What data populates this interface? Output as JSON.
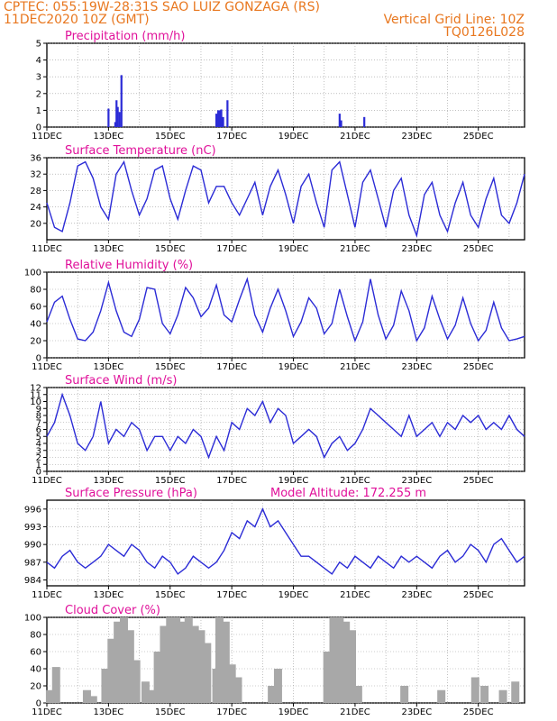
{
  "header": {
    "station": "CPTEC:   055:19W-28:31S   SAO LUIZ GONZAGA (RS)",
    "run": "11DEC2020 10Z (GMT)",
    "grid_note": "Vertical Grid Line: 10Z",
    "code": "TQ0126L028"
  },
  "x_tick_labels": [
    "11DEC",
    "13DEC",
    "15DEC",
    "17DEC",
    "19DEC",
    "21DEC",
    "23DEC",
    "25DEC"
  ],
  "colors": {
    "line": "#2b2bd6",
    "cloud": "#a8a8a8",
    "title": "#e0109a",
    "header": "#e8771f",
    "grid": "#9a9a9a"
  },
  "chart_data": [
    {
      "type": "bar",
      "title": "Precipitation (mm/h)",
      "xlabel": "",
      "ylabel": "",
      "x_range_days": [
        0,
        15.5
      ],
      "ylim": [
        0,
        5
      ],
      "yticks": [
        0,
        1,
        2,
        3,
        4,
        5
      ],
      "x": [
        2.0,
        2.22,
        2.26,
        2.3,
        2.36,
        2.42,
        5.5,
        5.56,
        5.6,
        5.66,
        5.72,
        5.86,
        9.5,
        9.55,
        10.3
      ],
      "values": [
        1.1,
        0.3,
        1.6,
        1.2,
        0.9,
        3.1,
        0.8,
        1.0,
        1.0,
        1.05,
        0.6,
        1.6,
        0.8,
        0.4,
        0.6
      ]
    },
    {
      "type": "line",
      "title": "Surface Temperature (nC)",
      "ylim": [
        16,
        36
      ],
      "yticks": [
        20,
        24,
        28,
        32,
        36
      ],
      "x": [
        0,
        0.25,
        0.5,
        0.75,
        1,
        1.25,
        1.5,
        1.75,
        2,
        2.25,
        2.5,
        2.75,
        3,
        3.25,
        3.5,
        3.75,
        4,
        4.25,
        4.5,
        4.75,
        5,
        5.25,
        5.5,
        5.75,
        6,
        6.25,
        6.5,
        6.75,
        7,
        7.25,
        7.5,
        7.75,
        8,
        8.25,
        8.5,
        8.75,
        9,
        9.25,
        9.5,
        9.75,
        10,
        10.25,
        10.5,
        10.75,
        11,
        11.25,
        11.5,
        11.75,
        12,
        12.25,
        12.5,
        12.75,
        13,
        13.25,
        13.5,
        13.75,
        14,
        14.25,
        14.5,
        14.75,
        15,
        15.25,
        15.5
      ],
      "values": [
        25,
        19,
        18,
        25,
        34,
        35,
        31,
        24,
        21,
        32,
        35,
        28,
        22,
        26,
        33,
        34,
        26,
        21,
        28,
        34,
        33,
        25,
        29,
        29,
        25,
        22,
        26,
        30,
        22,
        29,
        33,
        27,
        20,
        29,
        32,
        25,
        19,
        33,
        35,
        27,
        19,
        30,
        33,
        26,
        19,
        28,
        31,
        22,
        17,
        27,
        30,
        22,
        18,
        25,
        30,
        22,
        19,
        26,
        31,
        22,
        20,
        25,
        32
      ]
    },
    {
      "type": "line",
      "title": "Relative Humidity (%)",
      "ylim": [
        0,
        100
      ],
      "yticks": [
        0,
        20,
        40,
        60,
        80,
        100
      ],
      "x": [
        0,
        0.25,
        0.5,
        0.75,
        1,
        1.25,
        1.5,
        1.75,
        2,
        2.25,
        2.5,
        2.75,
        3,
        3.25,
        3.5,
        3.75,
        4,
        4.25,
        4.5,
        4.75,
        5,
        5.25,
        5.5,
        5.75,
        6,
        6.25,
        6.5,
        6.75,
        7,
        7.25,
        7.5,
        7.75,
        8,
        8.25,
        8.5,
        8.75,
        9,
        9.25,
        9.5,
        9.75,
        10,
        10.25,
        10.5,
        10.75,
        11,
        11.25,
        11.5,
        11.75,
        12,
        12.25,
        12.5,
        12.75,
        13,
        13.25,
        13.5,
        13.75,
        14,
        14.25,
        14.5,
        14.75,
        15,
        15.25,
        15.5
      ],
      "values": [
        42,
        65,
        72,
        45,
        22,
        20,
        30,
        55,
        88,
        55,
        30,
        25,
        45,
        82,
        80,
        40,
        28,
        50,
        82,
        70,
        48,
        58,
        85,
        50,
        42,
        68,
        92,
        50,
        30,
        58,
        80,
        55,
        25,
        42,
        70,
        58,
        28,
        40,
        80,
        48,
        20,
        42,
        92,
        50,
        22,
        38,
        78,
        55,
        20,
        35,
        72,
        45,
        22,
        38,
        70,
        40,
        20,
        32,
        65,
        35,
        20,
        22,
        25
      ]
    },
    {
      "type": "line",
      "title": "Surface Wind (m/s)",
      "ylim": [
        0,
        12
      ],
      "yticks": [
        0,
        1,
        2,
        3,
        4,
        5,
        6,
        7,
        8,
        9,
        10,
        11,
        12
      ],
      "x": [
        0,
        0.25,
        0.5,
        0.75,
        1,
        1.25,
        1.5,
        1.75,
        2,
        2.25,
        2.5,
        2.75,
        3,
        3.25,
        3.5,
        3.75,
        4,
        4.25,
        4.5,
        4.75,
        5,
        5.25,
        5.5,
        5.75,
        6,
        6.25,
        6.5,
        6.75,
        7,
        7.25,
        7.5,
        7.75,
        8,
        8.25,
        8.5,
        8.75,
        9,
        9.25,
        9.5,
        9.75,
        10,
        10.25,
        10.5,
        10.75,
        11,
        11.25,
        11.5,
        11.75,
        12,
        12.25,
        12.5,
        12.75,
        13,
        13.25,
        13.5,
        13.75,
        14,
        14.25,
        14.5,
        14.75,
        15,
        15.25,
        15.5
      ],
      "values": [
        5,
        7,
        11,
        8,
        4,
        3,
        5,
        10,
        4,
        6,
        5,
        7,
        6,
        3,
        5,
        5,
        3,
        5,
        4,
        6,
        5,
        2,
        5,
        3,
        7,
        6,
        9,
        8,
        10,
        7,
        9,
        8,
        4,
        5,
        6,
        5,
        2,
        4,
        5,
        3,
        4,
        6,
        9,
        8,
        7,
        6,
        5,
        8,
        5,
        6,
        7,
        5,
        7,
        6,
        8,
        7,
        8,
        6,
        7,
        6,
        8,
        6,
        5
      ]
    },
    {
      "type": "line",
      "title": "Surface Pressure (hPa)",
      "subtitle": "Model Altitude: 172.255  m",
      "ylim": [
        983,
        997.5
      ],
      "yticks": [
        984,
        987,
        990,
        993,
        996
      ],
      "x": [
        0,
        0.25,
        0.5,
        0.75,
        1,
        1.25,
        1.5,
        1.75,
        2,
        2.25,
        2.5,
        2.75,
        3,
        3.25,
        3.5,
        3.75,
        4,
        4.25,
        4.5,
        4.75,
        5,
        5.25,
        5.5,
        5.75,
        6,
        6.25,
        6.5,
        6.75,
        7,
        7.25,
        7.5,
        7.75,
        8,
        8.25,
        8.5,
        8.75,
        9,
        9.25,
        9.5,
        9.75,
        10,
        10.25,
        10.5,
        10.75,
        11,
        11.25,
        11.5,
        11.75,
        12,
        12.25,
        12.5,
        12.75,
        13,
        13.25,
        13.5,
        13.75,
        14,
        14.25,
        14.5,
        14.75,
        15,
        15.25,
        15.5
      ],
      "values": [
        987,
        986,
        988,
        989,
        987,
        986,
        987,
        988,
        990,
        989,
        988,
        990,
        989,
        987,
        986,
        988,
        987,
        985,
        986,
        988,
        987,
        986,
        987,
        989,
        992,
        991,
        994,
        993,
        996,
        993,
        994,
        992,
        990,
        988,
        988,
        987,
        986,
        985,
        987,
        986,
        988,
        987,
        986,
        988,
        987,
        986,
        988,
        987,
        988,
        987,
        986,
        988,
        989,
        987,
        988,
        990,
        989,
        987,
        990,
        991,
        989,
        987,
        988
      ]
    },
    {
      "type": "bar",
      "title": "Cloud Cover (%)",
      "ylim": [
        0,
        100
      ],
      "yticks": [
        0,
        20,
        40,
        60,
        80,
        100
      ],
      "x": [
        0.1,
        0.3,
        1.3,
        1.5,
        1.9,
        2.1,
        2.3,
        2.5,
        2.7,
        2.9,
        3.2,
        3.4,
        3.6,
        3.8,
        4.0,
        4.2,
        4.4,
        4.6,
        4.8,
        5.0,
        5.2,
        5.5,
        5.6,
        5.8,
        6.0,
        6.2,
        7.3,
        7.5,
        9.1,
        9.3,
        9.5,
        9.7,
        9.9,
        10.1,
        11.6,
        12.8,
        13.9,
        14.2,
        14.8,
        15.2
      ],
      "values": [
        15,
        42,
        15,
        8,
        40,
        75,
        95,
        100,
        85,
        50,
        25,
        15,
        60,
        90,
        100,
        100,
        95,
        100,
        90,
        85,
        70,
        40,
        100,
        95,
        45,
        30,
        20,
        40,
        60,
        100,
        100,
        95,
        85,
        20,
        20,
        15,
        30,
        20,
        15,
        25
      ]
    }
  ]
}
